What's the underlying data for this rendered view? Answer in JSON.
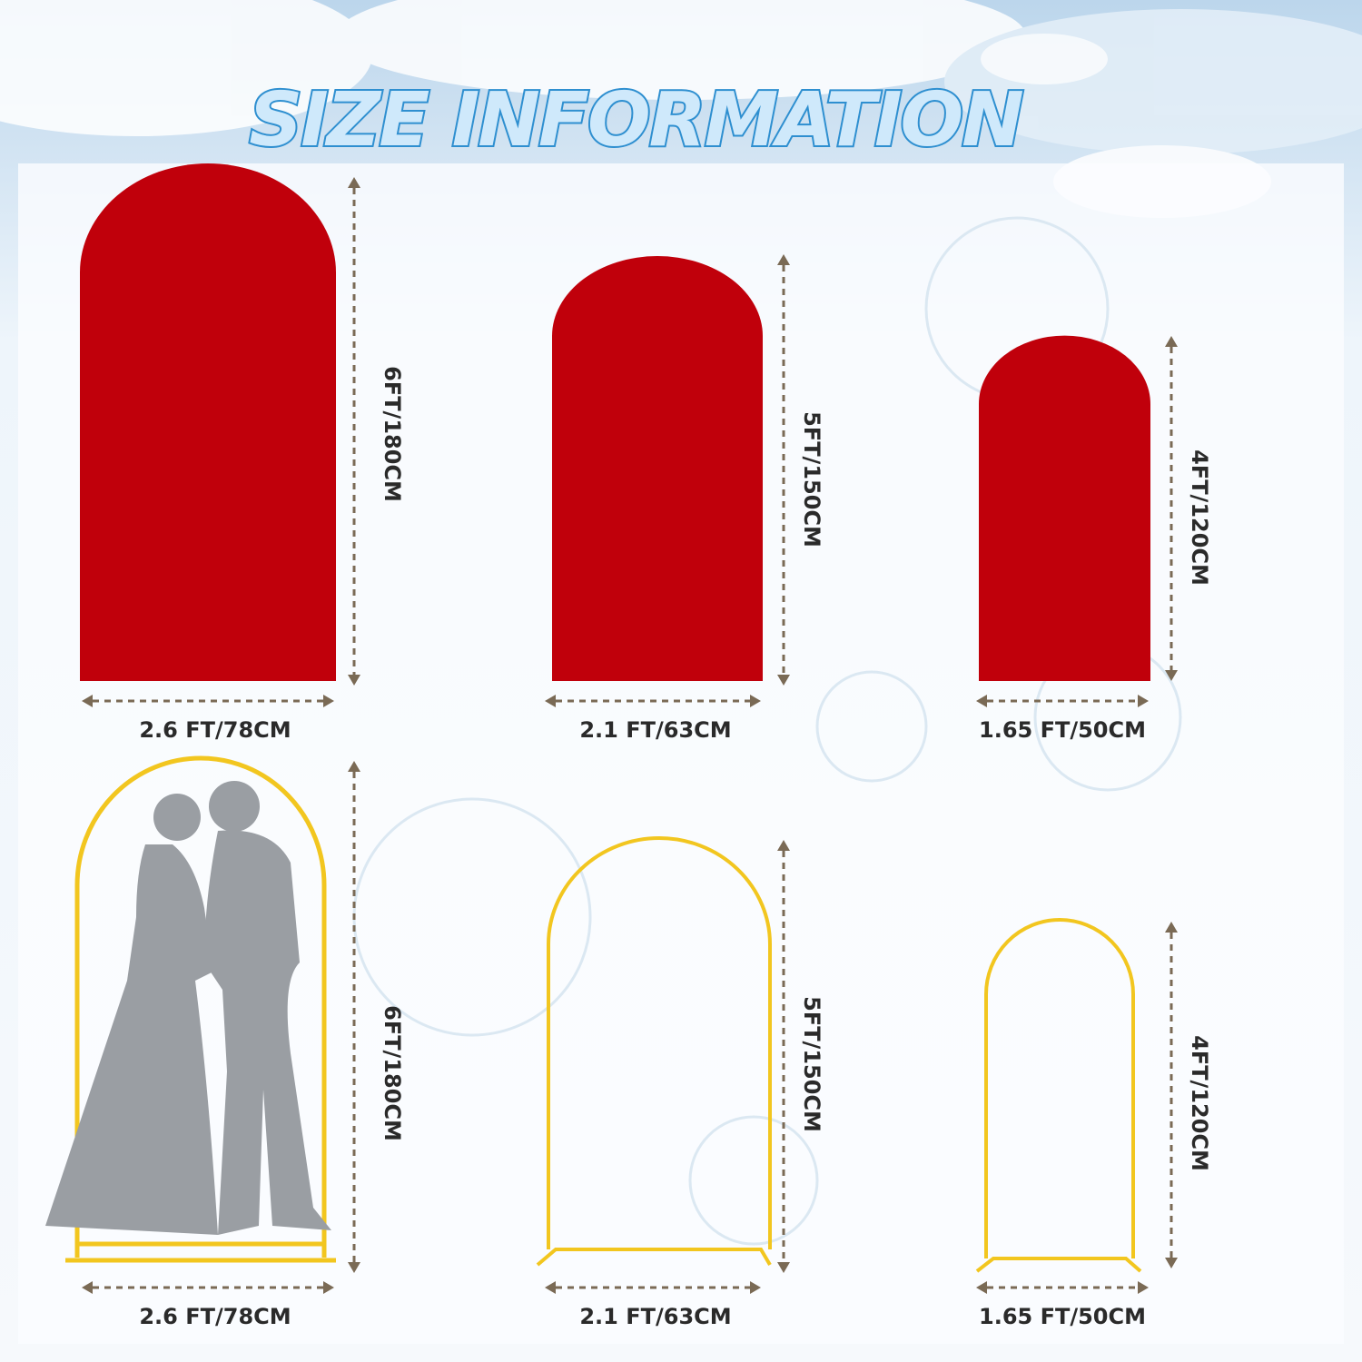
{
  "title": "SIZE INFORMATION",
  "colors": {
    "cover": "#c0000b",
    "frame": "#f2c61f",
    "silhouette": "#9a9ea3",
    "title": "#2e8fd0"
  },
  "covers": [
    {
      "height_label": "6FT/180CM",
      "width_label": "2.6 FT/78CM"
    },
    {
      "height_label": "5FT/150CM",
      "width_label": "2.1 FT/63CM"
    },
    {
      "height_label": "4FT/120CM",
      "width_label": "1.65 FT/50CM"
    }
  ],
  "frames": [
    {
      "height_label": "6FT/180CM",
      "width_label": "2.6 FT/78CM"
    },
    {
      "height_label": "5FT/150CM",
      "width_label": "2.1 FT/63CM"
    },
    {
      "height_label": "4FT/120CM",
      "width_label": "1.65 FT/50CM"
    }
  ]
}
